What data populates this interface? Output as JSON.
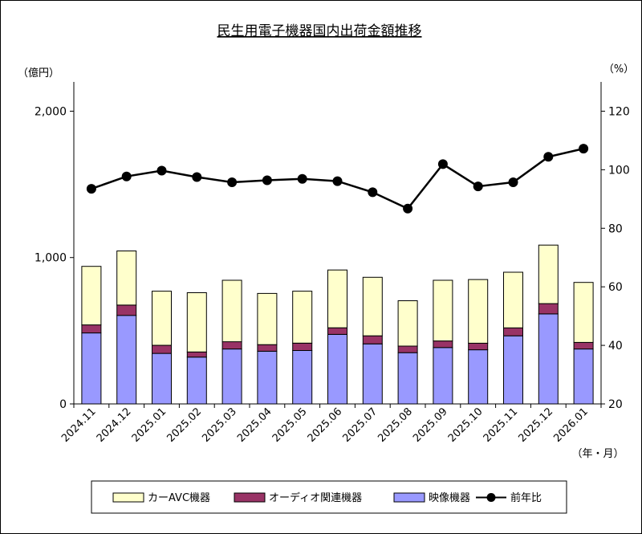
{
  "chart_data": {
    "type": "bar",
    "stacked": true,
    "title": "民生用電子機器国内出荷金額推移",
    "left_axis": {
      "unit": "（億円）",
      "min": 0,
      "max": 2200,
      "ticks": [
        0,
        1000,
        2000
      ],
      "tick_labels": [
        "0",
        "1,000",
        "2,000"
      ]
    },
    "right_axis": {
      "unit": "（%）",
      "min": 20,
      "max": 130,
      "ticks": [
        20,
        40,
        60,
        80,
        100,
        120
      ],
      "tick_labels": [
        "20",
        "40",
        "60",
        "80",
        "100",
        "120"
      ]
    },
    "x_unit": "（年・月）",
    "categories": [
      "2024.11",
      "2024.12",
      "2025.01",
      "2025.02",
      "2025.03",
      "2025.04",
      "2025.05",
      "2025.06",
      "2025.07",
      "2025.08",
      "2025.09",
      "2025.10",
      "2025.11",
      "2025.12",
      "2026.01"
    ],
    "series": [
      {
        "name": "映像機器",
        "axis": "left",
        "color": "#9999ff",
        "values": [
          485,
          605,
          345,
          320,
          375,
          360,
          365,
          475,
          410,
          350,
          385,
          370,
          465,
          615,
          375
        ]
      },
      {
        "name": "オーディオ関連機器",
        "axis": "left",
        "color": "#993366",
        "values": [
          55,
          70,
          55,
          35,
          50,
          45,
          50,
          45,
          55,
          45,
          45,
          45,
          55,
          70,
          45
        ]
      },
      {
        "name": "カーAVC機器",
        "axis": "left",
        "color": "#ffffcc",
        "values": [
          400,
          370,
          370,
          405,
          420,
          350,
          355,
          395,
          400,
          310,
          415,
          435,
          380,
          400,
          410
        ]
      },
      {
        "name": "前年比",
        "axis": "right",
        "type": "line",
        "color": "#000000",
        "values": [
          93.5,
          97.7,
          99.7,
          97.5,
          95.7,
          96.4,
          96.9,
          96.1,
          92.3,
          86.7,
          101.9,
          94.3,
          95.7,
          104.4,
          107.2
        ]
      }
    ],
    "legend": {
      "position": "bottom",
      "items": [
        "カーAVC機器",
        "オーディオ関連機器",
        "映像機器",
        "前年比"
      ]
    },
    "grid": false
  }
}
